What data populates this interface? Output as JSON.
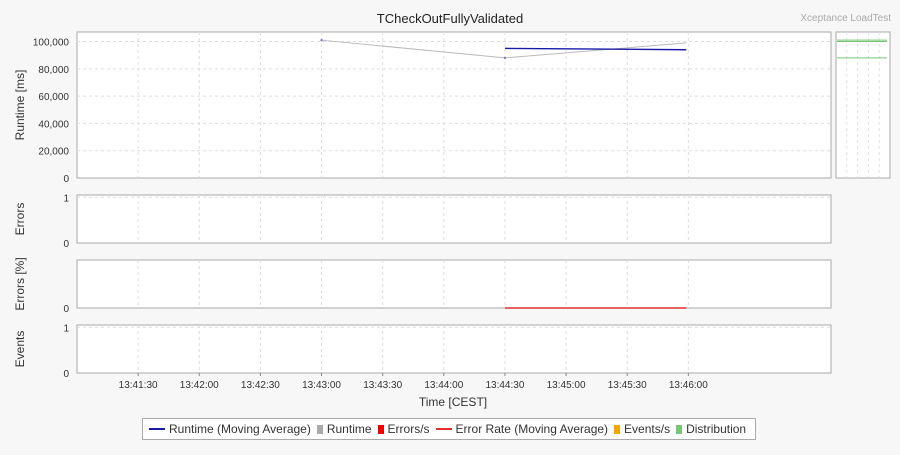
{
  "chart_data": {
    "type": "line",
    "title": "TCheckOutFullyValidated",
    "watermark": "Xceptance LoadTest",
    "xlabel": "Time [CEST]",
    "x_ticks": [
      "13:41:30",
      "13:42:00",
      "13:42:30",
      "13:43:00",
      "13:43:30",
      "13:44:00",
      "13:44:30",
      "13:45:00",
      "13:45:30",
      "13:46:00"
    ],
    "x_range_seconds": [
      0,
      370
    ],
    "x_tick_seconds": [
      30,
      60,
      90,
      120,
      150,
      180,
      210,
      240,
      270,
      300
    ],
    "panels": [
      {
        "name": "runtime",
        "ylabel": "Runtime [ms]",
        "yticks": [
          "0",
          "20,000",
          "40,000",
          "60,000",
          "80,000",
          "100,000"
        ],
        "ytick_values": [
          0,
          20000,
          40000,
          60000,
          80000,
          100000
        ],
        "ylim": [
          0,
          107000
        ],
        "series": [
          {
            "name": "Runtime",
            "color": "#bbbbbb",
            "points": [
              [
                120,
                101000
              ],
              [
                210,
                88000
              ],
              [
                299,
                99000
              ]
            ]
          },
          {
            "name": "Runtime (Moving Average)",
            "color": "#1a1aa8",
            "points": [
              [
                210,
                95000
              ],
              [
                299,
                94000
              ]
            ]
          }
        ],
        "distribution": [
          101000,
          100000,
          88000
        ]
      },
      {
        "name": "errors",
        "ylabel": "Errors",
        "yticks": [
          "0",
          "1"
        ],
        "ytick_values": [
          0,
          1
        ],
        "ylim": [
          0,
          1.05
        ],
        "series": []
      },
      {
        "name": "error-rate",
        "ylabel": "Errors [%]",
        "yticks": [
          "0"
        ],
        "ytick_values": [
          0
        ],
        "ylim": [
          0,
          1.05
        ],
        "series": [
          {
            "name": "Error Rate (Moving Average)",
            "color": "#e03030",
            "points": [
              [
                210,
                0
              ],
              [
                299,
                0
              ]
            ]
          }
        ]
      },
      {
        "name": "events",
        "ylabel": "Events",
        "yticks": [
          "0",
          "1"
        ],
        "ytick_values": [
          0,
          1
        ],
        "ylim": [
          0,
          1.05
        ],
        "series": []
      }
    ],
    "legend": [
      {
        "label": "Runtime (Moving Average)",
        "color": "#1a1aa8",
        "shape": "line"
      },
      {
        "label": "Runtime",
        "color": "#aaaaaa",
        "shape": "square"
      },
      {
        "label": "Errors/s",
        "color": "#ee0000",
        "shape": "square"
      },
      {
        "label": "Error Rate (Moving Average)",
        "color": "#e03030",
        "shape": "line"
      },
      {
        "label": "Events/s",
        "color": "#f5a500",
        "shape": "square"
      },
      {
        "label": "Distribution",
        "color": "#77c577",
        "shape": "square"
      }
    ]
  }
}
